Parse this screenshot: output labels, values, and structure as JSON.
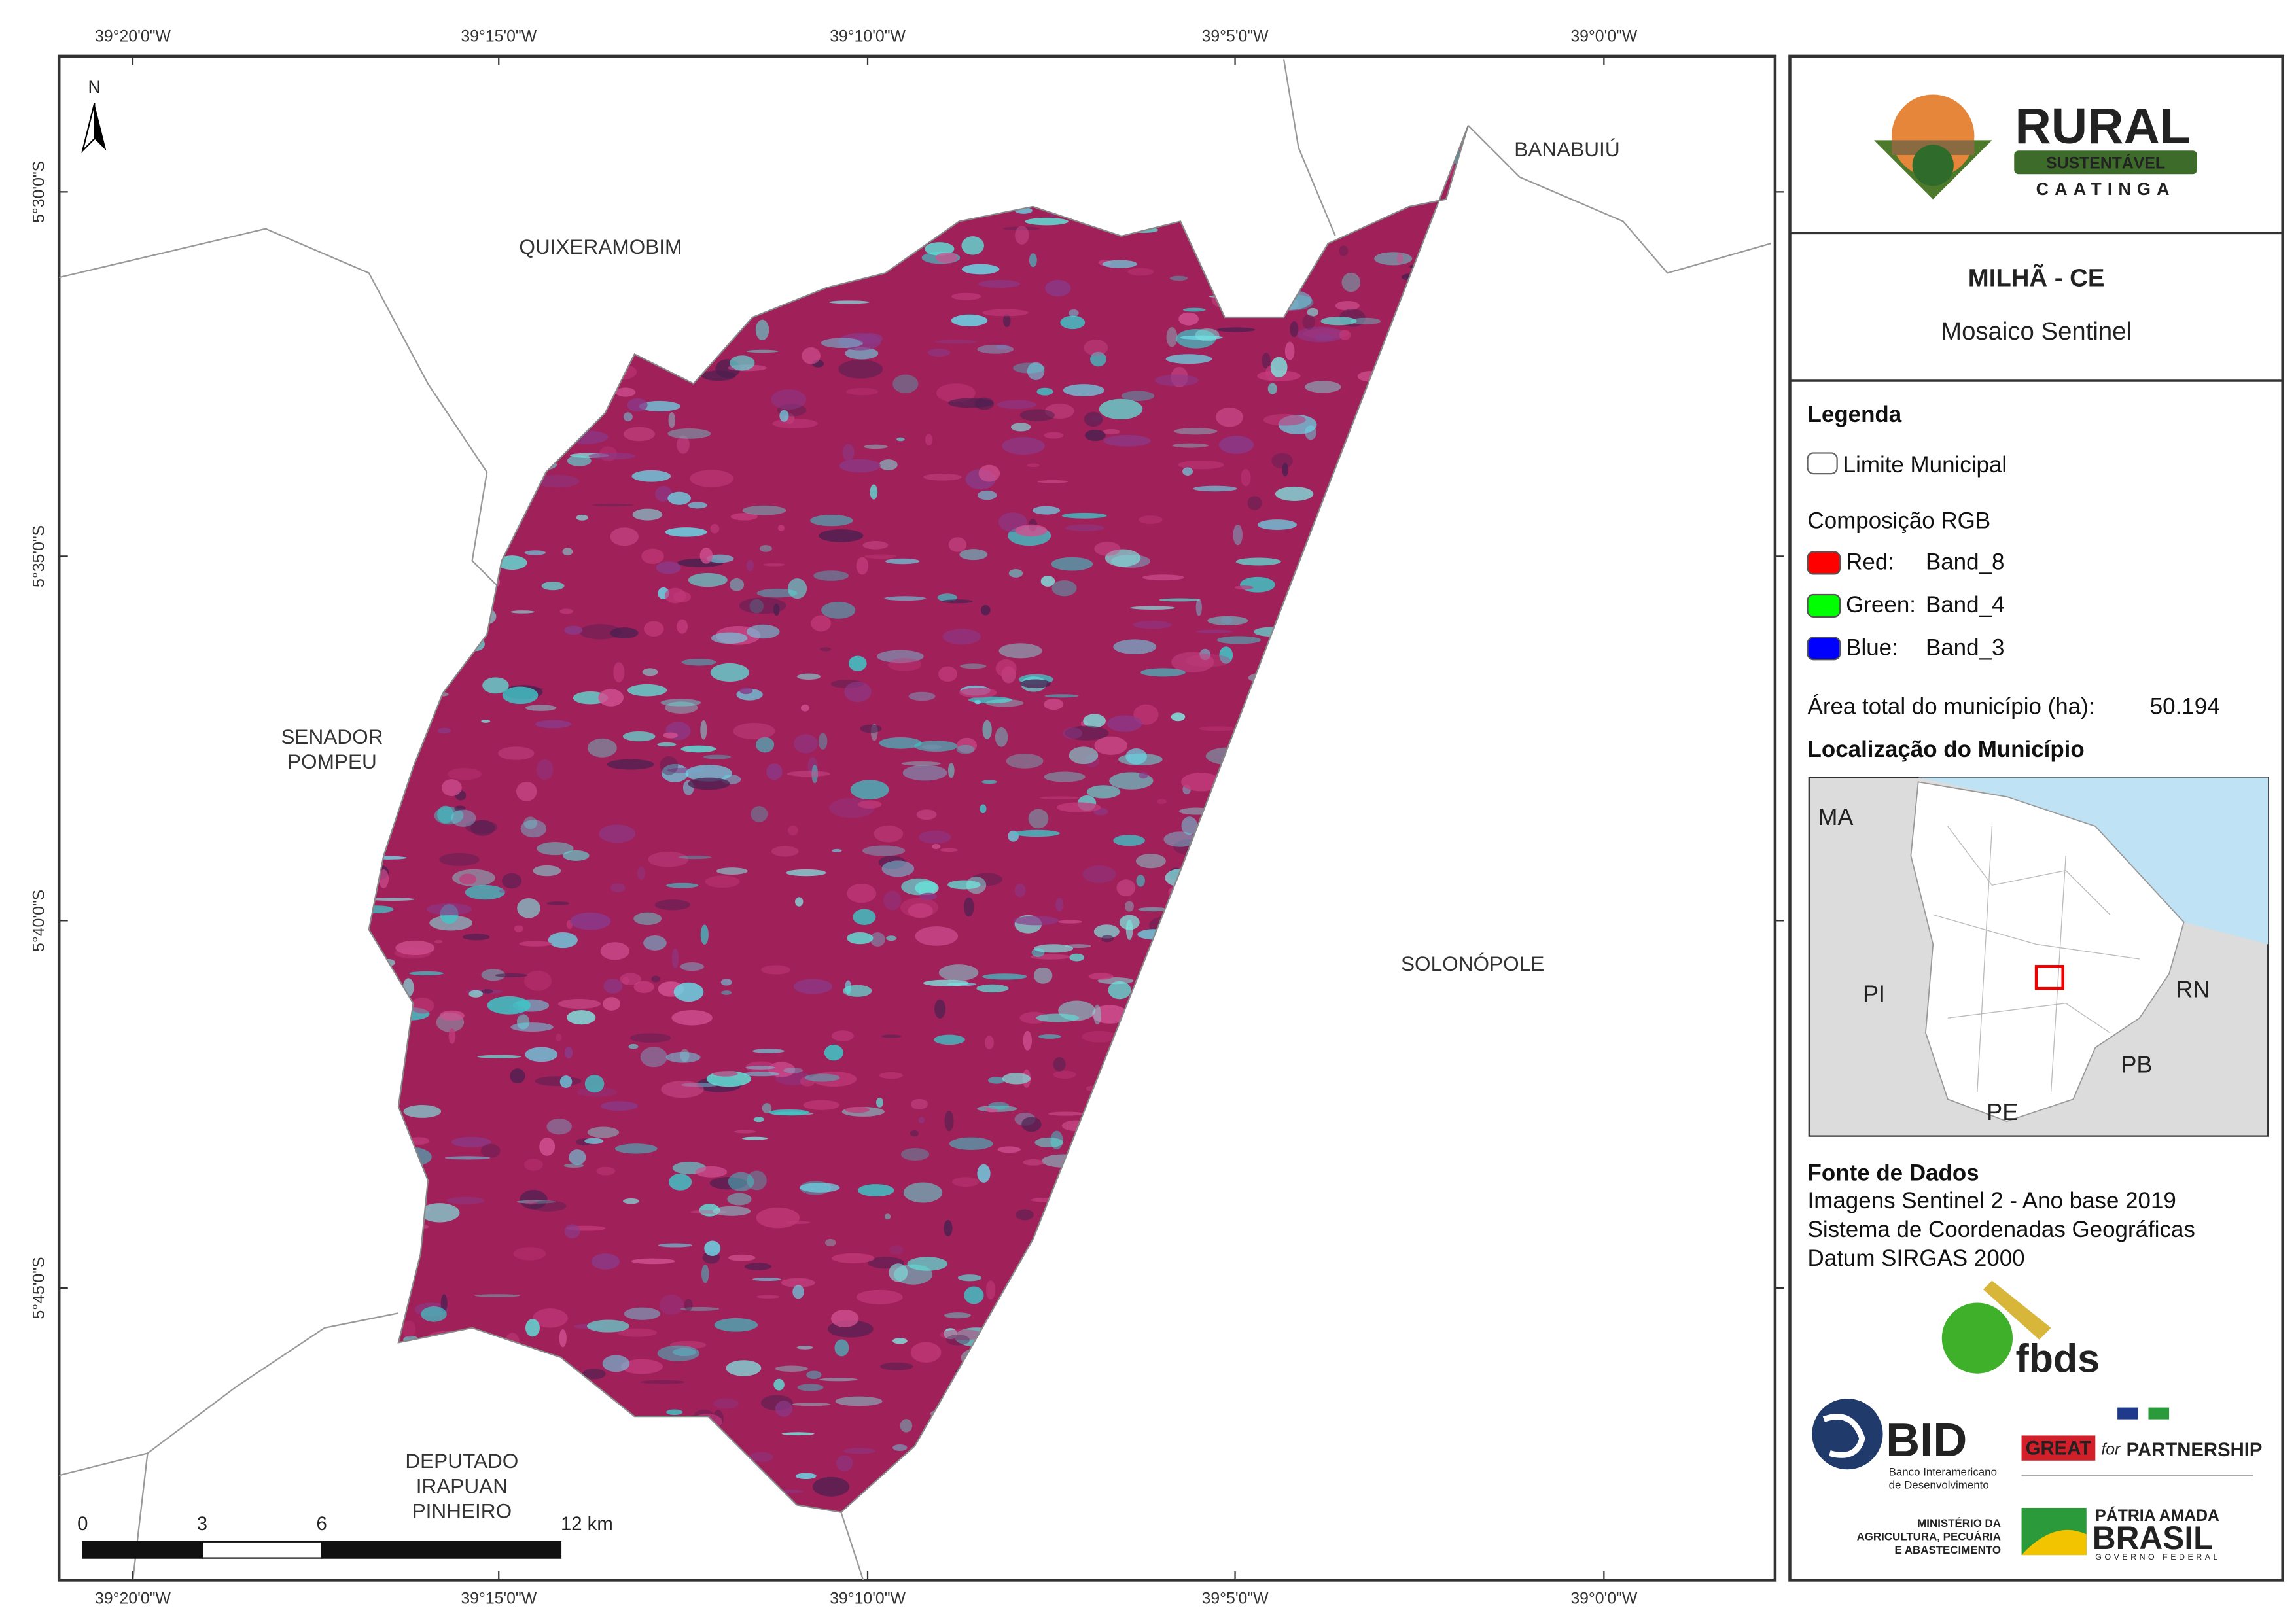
{
  "map": {
    "top_ticks": [
      "39°20'0\"W",
      "39°15'0\"W",
      "39°10'0\"W",
      "39°5'0\"W",
      "39°0'0\"W"
    ],
    "bottom_ticks": [
      "39°20'0\"W",
      "39°15'0\"W",
      "39°10'0\"W",
      "39°5'0\"W",
      "39°0'0\"W"
    ],
    "left_ticks": [
      "5°30'0\"S",
      "5°35'0\"S",
      "5°40'0\"S",
      "5°45'0\"S"
    ],
    "north": "N",
    "places": [
      {
        "lines": [
          "QUIXERAMOBIM"
        ]
      },
      {
        "lines": [
          "BANABUIÚ"
        ]
      },
      {
        "lines": [
          "SENADOR",
          "POMPEU"
        ]
      },
      {
        "lines": [
          "SOLONÓPOLE"
        ]
      },
      {
        "lines": [
          "DEPUTADO",
          "IRAPUAN",
          "PINHEIRO"
        ]
      }
    ],
    "scale_ticks": [
      0,
      3,
      6,
      {
        "value": 12,
        "label": "12 km"
      }
    ]
  },
  "panel": {
    "logo": {
      "word": "RURAL",
      "band": "SUSTENTÁVEL",
      "sub": "CAATINGA"
    },
    "title": "MILHÃ - CE",
    "subtitle": "Mosaico Sentinel",
    "legend": {
      "heading": "Legenda",
      "boundary": "Limite Municipal",
      "rgb_heading": "Composição RGB",
      "bands": [
        {
          "channel": "Red:",
          "band": "Band_8",
          "color": "#ff0000"
        },
        {
          "channel": "Green:",
          "band": "Band_4",
          "color": "#00ff00"
        },
        {
          "channel": "Blue:",
          "band": "Band_3",
          "color": "#0000ff"
        }
      ]
    },
    "area_label": "Área total do município (ha):",
    "area_value": "50.194",
    "location_heading": "Localização do Município",
    "inset_labels": [
      "MA",
      "PI",
      "RN",
      "PB",
      "PE"
    ],
    "sources_heading": "Fonte de Dados",
    "sources": [
      "Imagens Sentinel 2 - Ano base 2019",
      "Sistema de Coordenadas Geográficas",
      "Datum SIRGAS 2000"
    ],
    "logos": {
      "fbds": "fbds",
      "bid": "BID",
      "bid_sub": [
        "Banco Interamericano",
        "de Desenvolvimento"
      ],
      "great": "GREAT",
      "for": "for",
      "partnership": "PARTNERSHIP",
      "ministry": [
        "MINISTÉRIO DA",
        "AGRICULTURA, PECUÁRIA",
        "E ABASTECIMENTO"
      ],
      "patria": "PÁTRIA AMADA",
      "brasil": "BRASIL",
      "gov": "GOVERNO FEDERAL"
    }
  }
}
